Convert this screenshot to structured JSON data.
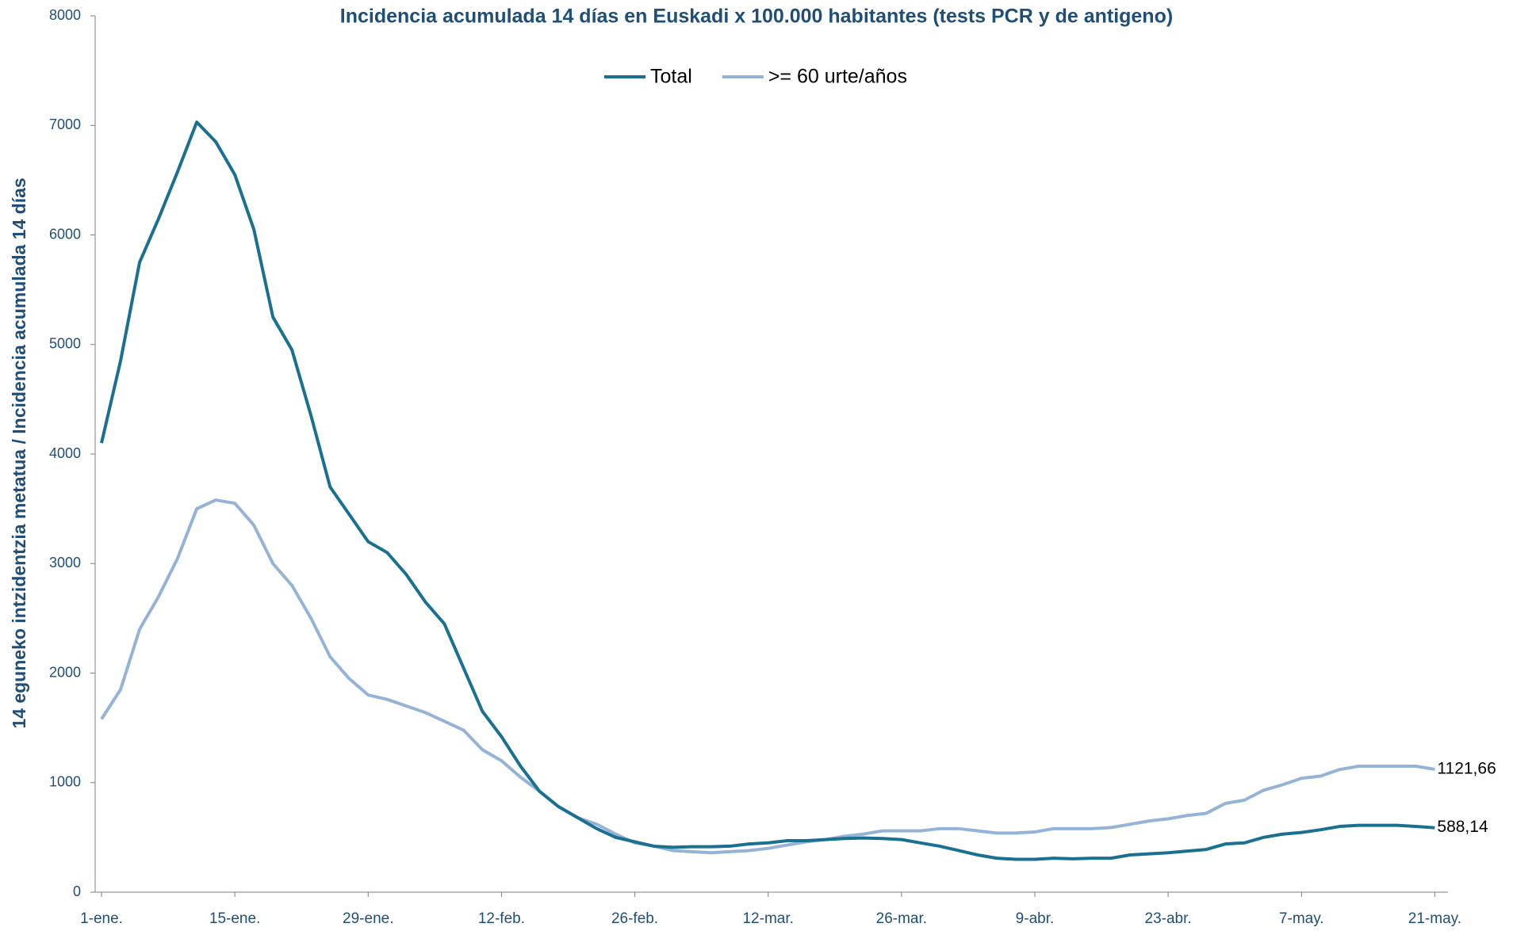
{
  "chart_data": {
    "type": "line",
    "title": "Incidencia acumulada  14 días en Euskadi x 100.000 habitantes (tests PCR y de antigeno)",
    "ylabel": "14 eguneko intzidentzia metatua / Incidencia acumulada 14 días",
    "categories": [
      "1-ene.",
      null,
      null,
      null,
      null,
      null,
      null,
      "15-ene.",
      null,
      null,
      null,
      null,
      null,
      null,
      "29-ene.",
      null,
      null,
      null,
      null,
      null,
      null,
      "12-feb.",
      null,
      null,
      null,
      null,
      null,
      null,
      "26-feb.",
      null,
      null,
      null,
      null,
      null,
      null,
      "12-mar.",
      null,
      null,
      null,
      null,
      null,
      null,
      "26-mar.",
      null,
      null,
      null,
      null,
      null,
      null,
      "9-abr.",
      null,
      null,
      null,
      null,
      null,
      null,
      "23-abr.",
      null,
      null,
      null,
      null,
      null,
      null,
      "7-may.",
      null,
      null,
      null,
      null,
      null,
      null,
      "21-may."
    ],
    "series": [
      {
        "name": "Total",
        "color": "#1a7090",
        "values": [
          4100,
          4850,
          5750,
          6150,
          6580,
          7030,
          6850,
          6550,
          6050,
          5250,
          4950,
          4350,
          3700,
          3450,
          3200,
          3100,
          2900,
          2650,
          2450,
          2050,
          1650,
          1420,
          1150,
          920,
          780,
          680,
          580,
          500,
          460,
          420,
          410,
          415,
          415,
          420,
          440,
          450,
          470,
          470,
          480,
          490,
          495,
          490,
          480,
          450,
          420,
          380,
          340,
          310,
          300,
          300,
          310,
          305,
          310,
          310,
          340,
          350,
          360,
          375,
          390,
          440,
          450,
          500,
          530,
          545,
          570,
          600,
          610,
          610,
          610,
          600,
          588.14
        ],
        "value_labels": [
          null,
          null,
          null,
          null,
          null,
          null,
          null,
          null,
          null,
          null,
          null,
          null,
          null,
          null,
          null,
          null,
          null,
          null,
          null,
          null,
          null,
          null,
          null,
          null,
          null,
          null,
          null,
          null,
          null,
          null,
          null,
          null,
          null,
          null,
          null,
          null,
          null,
          null,
          null,
          null,
          null,
          null,
          null,
          null,
          null,
          null,
          null,
          null,
          null,
          null,
          null,
          null,
          null,
          null,
          null,
          null,
          null,
          null,
          null,
          null,
          null,
          null,
          null,
          null,
          null,
          null,
          null,
          null,
          null,
          null,
          "588,14"
        ]
      },
      {
        "name": ">= 60 urte/años",
        "color": "#95b3d7",
        "values": [
          1580,
          1850,
          2400,
          2700,
          3050,
          3500,
          3580,
          3550,
          3350,
          3000,
          2800,
          2500,
          2150,
          1950,
          1800,
          1760,
          1700,
          1640,
          1560,
          1480,
          1300,
          1200,
          1050,
          920,
          780,
          680,
          620,
          530,
          450,
          420,
          380,
          370,
          360,
          370,
          380,
          400,
          430,
          460,
          480,
          510,
          530,
          560,
          560,
          560,
          580,
          580,
          560,
          540,
          540,
          550,
          580,
          580,
          580,
          590,
          620,
          650,
          670,
          700,
          720,
          810,
          840,
          930,
          980,
          1040,
          1060,
          1120,
          1150,
          1150,
          1150,
          1150,
          1121.66
        ],
        "value_labels": [
          null,
          null,
          null,
          null,
          null,
          null,
          null,
          null,
          null,
          null,
          null,
          null,
          null,
          null,
          null,
          null,
          null,
          null,
          null,
          null,
          null,
          null,
          null,
          null,
          null,
          null,
          null,
          null,
          null,
          null,
          null,
          null,
          null,
          null,
          null,
          null,
          null,
          null,
          null,
          null,
          null,
          null,
          null,
          null,
          null,
          null,
          null,
          null,
          null,
          null,
          null,
          null,
          null,
          null,
          null,
          null,
          null,
          null,
          null,
          null,
          null,
          null,
          null,
          null,
          null,
          null,
          null,
          null,
          null,
          null,
          "1121,66"
        ]
      }
    ],
    "ylim": [
      0,
      8000
    ],
    "yticks": [
      0,
      1000,
      2000,
      3000,
      4000,
      5000,
      6000,
      7000,
      8000
    ],
    "legend": "top",
    "grid": false
  }
}
